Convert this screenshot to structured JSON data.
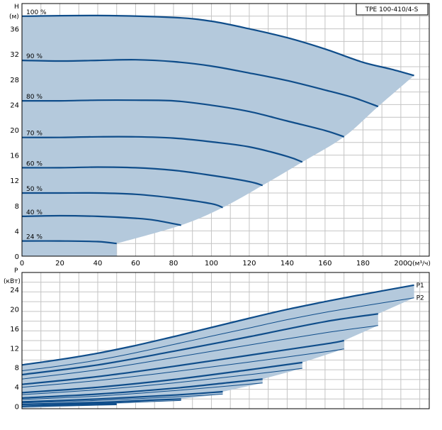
{
  "chart_data": [
    {
      "type": "line",
      "title": "TPE 100-410/4-S",
      "ylabel_symbol": "H",
      "ylabel_unit": "(м)",
      "xlabel": "Q(м³/ч)",
      "xlim": [
        0,
        215
      ],
      "ylim": [
        0,
        40
      ],
      "xticks": [
        0,
        20,
        40,
        60,
        80,
        100,
        120,
        140,
        160,
        180,
        200
      ],
      "yticks": [
        0,
        4,
        8,
        12,
        16,
        20,
        24,
        28,
        32,
        36
      ],
      "grid": true,
      "colors": {
        "fill": "#b4c9dc",
        "curve": "#0f4d8a",
        "grid": "#c4c4c4"
      },
      "series": [
        {
          "name": "100 %",
          "x": [
            0,
            40,
            80,
            100,
            120,
            140,
            160,
            180,
            195,
            207
          ],
          "y": [
            38.0,
            38.1,
            37.8,
            37.2,
            36.0,
            34.6,
            32.8,
            30.7,
            29.6,
            28.6
          ]
        },
        {
          "name": "90 %",
          "x": [
            0,
            20,
            40,
            60,
            80,
            100,
            120,
            140,
            160,
            175,
            188
          ],
          "y": [
            31.0,
            30.9,
            31.0,
            31.1,
            30.8,
            30.1,
            29.0,
            27.8,
            26.3,
            25.1,
            23.7
          ]
        },
        {
          "name": "80 %",
          "x": [
            0,
            20,
            40,
            60,
            80,
            100,
            120,
            140,
            160,
            170
          ],
          "y": [
            24.6,
            24.6,
            24.7,
            24.7,
            24.6,
            23.9,
            22.9,
            21.4,
            19.9,
            18.9
          ]
        },
        {
          "name": "70 %",
          "x": [
            0,
            20,
            40,
            60,
            80,
            100,
            120,
            140,
            148
          ],
          "y": [
            18.8,
            18.8,
            18.9,
            18.9,
            18.7,
            18.1,
            17.3,
            15.8,
            14.9
          ]
        },
        {
          "name": "60 %",
          "x": [
            0,
            20,
            40,
            60,
            80,
            100,
            120,
            127
          ],
          "y": [
            14.0,
            14.0,
            14.1,
            14.0,
            13.6,
            12.8,
            11.8,
            11.2
          ]
        },
        {
          "name": "50 %",
          "x": [
            0,
            20,
            40,
            60,
            80,
            100,
            106
          ],
          "y": [
            10.0,
            10.0,
            10.0,
            9.8,
            9.2,
            8.3,
            7.7
          ]
        },
        {
          "name": "40 %",
          "x": [
            0,
            20,
            40,
            60,
            70,
            84
          ],
          "y": [
            6.3,
            6.4,
            6.3,
            6.0,
            5.7,
            4.9
          ]
        },
        {
          "name": "24 %",
          "x": [
            0,
            20,
            40,
            50
          ],
          "y": [
            2.4,
            2.4,
            2.3,
            2.0
          ]
        }
      ]
    },
    {
      "type": "line",
      "ylabel_symbol": "P",
      "ylabel_unit": "(кВт)",
      "xlim": [
        0,
        215
      ],
      "ylim": [
        -0.5,
        27.5
      ],
      "yticks": [
        0,
        4,
        8,
        12,
        16,
        20,
        24
      ],
      "grid": true,
      "colors": {
        "fill": "#b4c9dc",
        "curve": "#0f4d8a",
        "grid": "#c4c4c4"
      },
      "series": [
        {
          "name": "P1",
          "x": [
            0,
            20,
            40,
            60,
            80,
            100,
            120,
            140,
            160,
            180,
            207
          ],
          "y": [
            8.5,
            9.6,
            10.9,
            12.5,
            14.3,
            16.2,
            18.1,
            19.9,
            21.5,
            23.0,
            24.9
          ]
        },
        {
          "name": "P2",
          "x": [
            0,
            20,
            40,
            60,
            80,
            100,
            120,
            140,
            160,
            180,
            207
          ],
          "y": [
            7.3,
            8.3,
            9.5,
            11.0,
            12.7,
            14.4,
            16.1,
            17.8,
            19.3,
            20.6,
            22.3
          ]
        },
        {
          "x": [
            0,
            40,
            80,
            120,
            160,
            188
          ],
          "y": [
            6.5,
            8.5,
            11.3,
            14.3,
            17.4,
            19.0
          ]
        },
        {
          "x": [
            0,
            40,
            80,
            120,
            160,
            188
          ],
          "y": [
            5.6,
            7.5,
            10.0,
            12.6,
            15.1,
            16.6
          ]
        },
        {
          "x": [
            0,
            40,
            80,
            120,
            160,
            170
          ],
          "y": [
            4.5,
            6.1,
            8.2,
            10.5,
            12.8,
            13.5
          ]
        },
        {
          "x": [
            0,
            40,
            80,
            120,
            160,
            170
          ],
          "y": [
            3.9,
            5.3,
            7.1,
            9.1,
            11.2,
            11.8
          ]
        },
        {
          "x": [
            0,
            40,
            80,
            120,
            148
          ],
          "y": [
            2.8,
            3.9,
            5.5,
            7.5,
            9.0
          ]
        },
        {
          "x": [
            0,
            40,
            80,
            120,
            148
          ],
          "y": [
            2.4,
            3.4,
            4.8,
            6.5,
            7.8
          ]
        },
        {
          "x": [
            0,
            40,
            80,
            110,
            127
          ],
          "y": [
            1.7,
            2.5,
            3.7,
            4.9,
            5.6
          ]
        },
        {
          "x": [
            0,
            40,
            80,
            110,
            127
          ],
          "y": [
            1.4,
            2.1,
            3.2,
            4.2,
            4.8
          ]
        },
        {
          "x": [
            0,
            40,
            80,
            106
          ],
          "y": [
            0.9,
            1.5,
            2.3,
            3.0
          ]
        },
        {
          "x": [
            0,
            40,
            80,
            106
          ],
          "y": [
            0.7,
            1.2,
            1.9,
            2.5
          ]
        },
        {
          "x": [
            0,
            40,
            70,
            84
          ],
          "y": [
            0.4,
            0.8,
            1.3,
            1.5
          ]
        },
        {
          "x": [
            0,
            40,
            70,
            84
          ],
          "y": [
            0.3,
            0.6,
            1.0,
            1.2
          ]
        },
        {
          "x": [
            0,
            25,
            50
          ],
          "y": [
            0.0,
            0.3,
            0.5
          ]
        },
        {
          "x": [
            0,
            25,
            50
          ],
          "y": [
            -0.1,
            0.1,
            0.3
          ]
        }
      ]
    }
  ]
}
